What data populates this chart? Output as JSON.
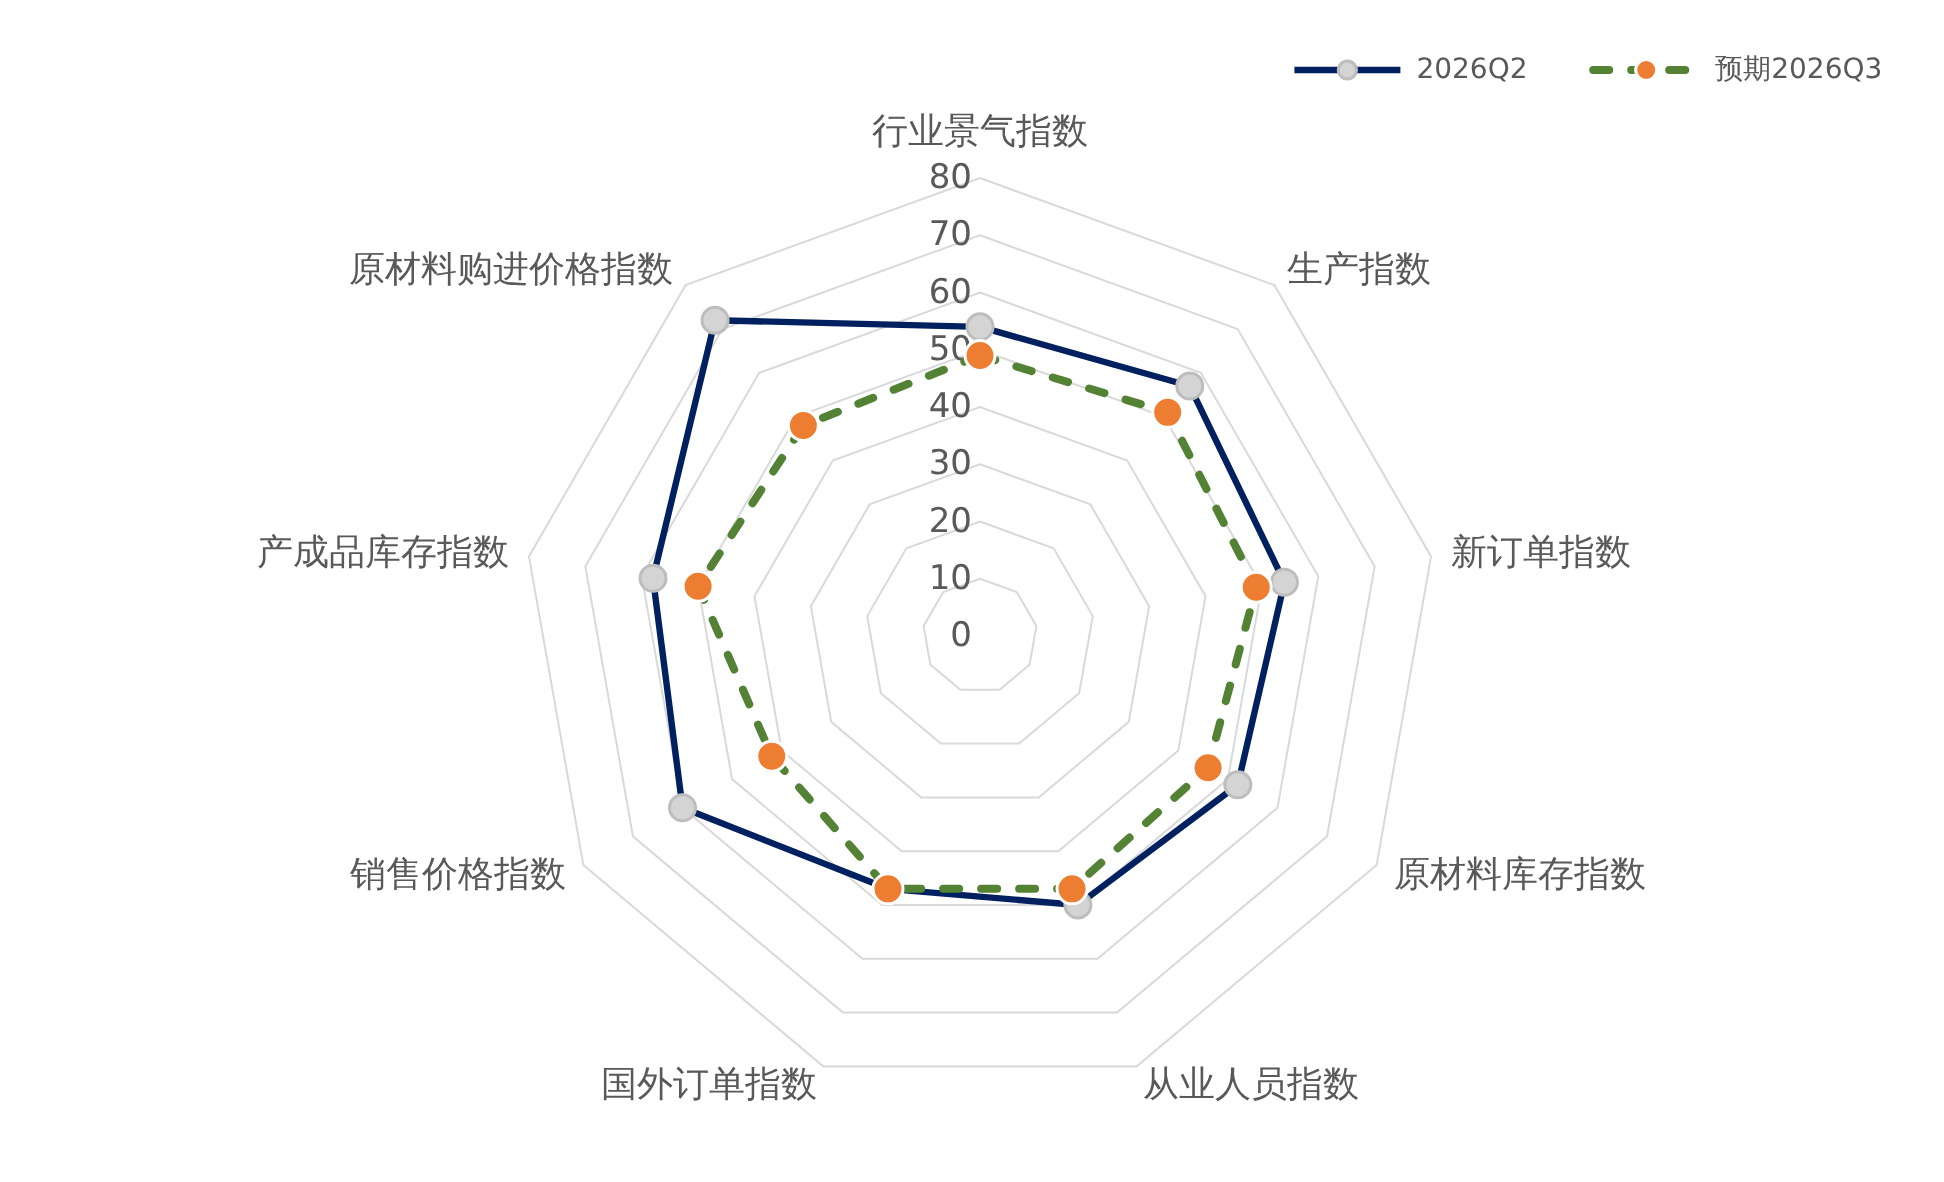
{
  "chart_data": {
    "type": "radar",
    "categories": [
      "行业景气指数",
      "生产指数",
      "新订单指数",
      "原材料库存指数",
      "从业人员指数",
      "国外订单指数",
      "销售价格指数",
      "产成品库存指数",
      "原材料购进价格指数"
    ],
    "series": [
      {
        "name": "2026Q2",
        "color": "#002060",
        "values": [
          54,
          57,
          54,
          52,
          50,
          47,
          60,
          58,
          72
        ],
        "line_style": "solid"
      },
      {
        "name": "预期2026Q3",
        "color": "#548235",
        "values": [
          49,
          51,
          49,
          46,
          47,
          47,
          42,
          50,
          48
        ],
        "line_style": "dashed"
      }
    ],
    "ylim": [
      0,
      80
    ],
    "yticks": [
      0,
      10,
      20,
      30,
      40,
      50,
      60,
      70,
      80
    ],
    "grid": true,
    "legend": "top right",
    "marker": "circle"
  }
}
